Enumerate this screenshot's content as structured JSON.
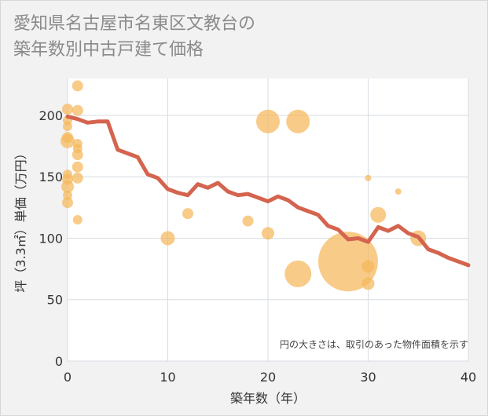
{
  "title": "愛知県名古屋市名東区文教台の\n築年数別中古戸建て価格",
  "chart_data": {
    "type": "scatter",
    "title": "愛知県名古屋市名東区文教台の\n築年数別中古戸建て価格",
    "xlabel": "築年数（年）",
    "ylabel": "坪（3.3㎡）単価（万円）",
    "xlim": [
      0,
      40
    ],
    "ylim": [
      0,
      230
    ],
    "xticks": [
      0,
      10,
      20,
      30,
      40
    ],
    "yticks": [
      0,
      50,
      100,
      150,
      200
    ],
    "grid": true,
    "note": "円の大きさは、取引のあった物件面積を示す",
    "colors": {
      "bubble": "#f5b75a",
      "line": "#d4644f"
    },
    "bubbles": [
      {
        "x": 0,
        "y": 205,
        "r": 7
      },
      {
        "x": 0,
        "y": 196,
        "r": 6
      },
      {
        "x": 0,
        "y": 191,
        "r": 6
      },
      {
        "x": 0,
        "y": 182,
        "r": 7
      },
      {
        "x": 0,
        "y": 179,
        "r": 9
      },
      {
        "x": 0,
        "y": 152,
        "r": 6
      },
      {
        "x": 0,
        "y": 148,
        "r": 7
      },
      {
        "x": 0,
        "y": 142,
        "r": 8
      },
      {
        "x": 0,
        "y": 135,
        "r": 6
      },
      {
        "x": 0,
        "y": 129,
        "r": 7
      },
      {
        "x": 1,
        "y": 224,
        "r": 7
      },
      {
        "x": 1,
        "y": 204,
        "r": 7
      },
      {
        "x": 1,
        "y": 177,
        "r": 6
      },
      {
        "x": 1,
        "y": 173,
        "r": 6
      },
      {
        "x": 1,
        "y": 168,
        "r": 7
      },
      {
        "x": 1,
        "y": 158,
        "r": 7
      },
      {
        "x": 1,
        "y": 149,
        "r": 7
      },
      {
        "x": 1,
        "y": 115,
        "r": 6
      },
      {
        "x": 10,
        "y": 100,
        "r": 9
      },
      {
        "x": 12,
        "y": 120,
        "r": 7
      },
      {
        "x": 18,
        "y": 114,
        "r": 7
      },
      {
        "x": 20,
        "y": 195,
        "r": 15
      },
      {
        "x": 20,
        "y": 104,
        "r": 8
      },
      {
        "x": 23,
        "y": 195,
        "r": 15
      },
      {
        "x": 23,
        "y": 71,
        "r": 17
      },
      {
        "x": 28,
        "y": 81,
        "r": 38
      },
      {
        "x": 30,
        "y": 149,
        "r": 4
      },
      {
        "x": 30,
        "y": 77,
        "r": 8
      },
      {
        "x": 30,
        "y": 63,
        "r": 8
      },
      {
        "x": 31,
        "y": 119,
        "r": 10
      },
      {
        "x": 33,
        "y": 138,
        "r": 4
      },
      {
        "x": 35,
        "y": 100,
        "r": 10
      }
    ],
    "trend": {
      "x": [
        0,
        1,
        2,
        3,
        4,
        5,
        6,
        7,
        8,
        9,
        10,
        11,
        12,
        13,
        14,
        15,
        16,
        17,
        18,
        19,
        20,
        21,
        22,
        23,
        24,
        25,
        26,
        27,
        28,
        29,
        30,
        31,
        32,
        33,
        34,
        35,
        36,
        37,
        38,
        39,
        40
      ],
      "y": [
        199,
        197,
        194,
        195,
        195,
        172,
        169,
        166,
        152,
        149,
        140,
        137,
        135,
        144,
        141,
        145,
        138,
        135,
        136,
        133,
        130,
        134,
        131,
        125,
        122,
        119,
        110,
        107,
        99,
        100,
        97,
        109,
        106,
        110,
        104,
        101,
        91,
        88,
        84,
        81,
        78
      ]
    }
  }
}
